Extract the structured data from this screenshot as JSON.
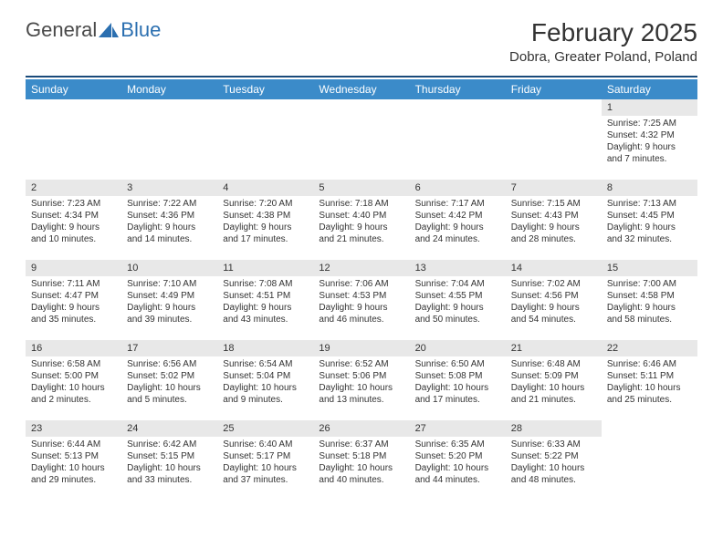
{
  "logo": {
    "text_general": "General",
    "text_blue": "Blue",
    "icon_color": "#2b6fb0"
  },
  "title": "February 2025",
  "location": "Dobra, Greater Poland, Poland",
  "colors": {
    "header_bg": "#3b8bc9",
    "header_text": "#ffffff",
    "rule": "#1a4a7a",
    "daynum_bg": "#e8e8e8",
    "body_text": "#333333"
  },
  "weekdays": [
    "Sunday",
    "Monday",
    "Tuesday",
    "Wednesday",
    "Thursday",
    "Friday",
    "Saturday"
  ],
  "weeks": [
    [
      null,
      null,
      null,
      null,
      null,
      null,
      {
        "n": "1",
        "sunrise": "Sunrise: 7:25 AM",
        "sunset": "Sunset: 4:32 PM",
        "daylight": "Daylight: 9 hours and 7 minutes."
      }
    ],
    [
      {
        "n": "2",
        "sunrise": "Sunrise: 7:23 AM",
        "sunset": "Sunset: 4:34 PM",
        "daylight": "Daylight: 9 hours and 10 minutes."
      },
      {
        "n": "3",
        "sunrise": "Sunrise: 7:22 AM",
        "sunset": "Sunset: 4:36 PM",
        "daylight": "Daylight: 9 hours and 14 minutes."
      },
      {
        "n": "4",
        "sunrise": "Sunrise: 7:20 AM",
        "sunset": "Sunset: 4:38 PM",
        "daylight": "Daylight: 9 hours and 17 minutes."
      },
      {
        "n": "5",
        "sunrise": "Sunrise: 7:18 AM",
        "sunset": "Sunset: 4:40 PM",
        "daylight": "Daylight: 9 hours and 21 minutes."
      },
      {
        "n": "6",
        "sunrise": "Sunrise: 7:17 AM",
        "sunset": "Sunset: 4:42 PM",
        "daylight": "Daylight: 9 hours and 24 minutes."
      },
      {
        "n": "7",
        "sunrise": "Sunrise: 7:15 AM",
        "sunset": "Sunset: 4:43 PM",
        "daylight": "Daylight: 9 hours and 28 minutes."
      },
      {
        "n": "8",
        "sunrise": "Sunrise: 7:13 AM",
        "sunset": "Sunset: 4:45 PM",
        "daylight": "Daylight: 9 hours and 32 minutes."
      }
    ],
    [
      {
        "n": "9",
        "sunrise": "Sunrise: 7:11 AM",
        "sunset": "Sunset: 4:47 PM",
        "daylight": "Daylight: 9 hours and 35 minutes."
      },
      {
        "n": "10",
        "sunrise": "Sunrise: 7:10 AM",
        "sunset": "Sunset: 4:49 PM",
        "daylight": "Daylight: 9 hours and 39 minutes."
      },
      {
        "n": "11",
        "sunrise": "Sunrise: 7:08 AM",
        "sunset": "Sunset: 4:51 PM",
        "daylight": "Daylight: 9 hours and 43 minutes."
      },
      {
        "n": "12",
        "sunrise": "Sunrise: 7:06 AM",
        "sunset": "Sunset: 4:53 PM",
        "daylight": "Daylight: 9 hours and 46 minutes."
      },
      {
        "n": "13",
        "sunrise": "Sunrise: 7:04 AM",
        "sunset": "Sunset: 4:55 PM",
        "daylight": "Daylight: 9 hours and 50 minutes."
      },
      {
        "n": "14",
        "sunrise": "Sunrise: 7:02 AM",
        "sunset": "Sunset: 4:56 PM",
        "daylight": "Daylight: 9 hours and 54 minutes."
      },
      {
        "n": "15",
        "sunrise": "Sunrise: 7:00 AM",
        "sunset": "Sunset: 4:58 PM",
        "daylight": "Daylight: 9 hours and 58 minutes."
      }
    ],
    [
      {
        "n": "16",
        "sunrise": "Sunrise: 6:58 AM",
        "sunset": "Sunset: 5:00 PM",
        "daylight": "Daylight: 10 hours and 2 minutes."
      },
      {
        "n": "17",
        "sunrise": "Sunrise: 6:56 AM",
        "sunset": "Sunset: 5:02 PM",
        "daylight": "Daylight: 10 hours and 5 minutes."
      },
      {
        "n": "18",
        "sunrise": "Sunrise: 6:54 AM",
        "sunset": "Sunset: 5:04 PM",
        "daylight": "Daylight: 10 hours and 9 minutes."
      },
      {
        "n": "19",
        "sunrise": "Sunrise: 6:52 AM",
        "sunset": "Sunset: 5:06 PM",
        "daylight": "Daylight: 10 hours and 13 minutes."
      },
      {
        "n": "20",
        "sunrise": "Sunrise: 6:50 AM",
        "sunset": "Sunset: 5:08 PM",
        "daylight": "Daylight: 10 hours and 17 minutes."
      },
      {
        "n": "21",
        "sunrise": "Sunrise: 6:48 AM",
        "sunset": "Sunset: 5:09 PM",
        "daylight": "Daylight: 10 hours and 21 minutes."
      },
      {
        "n": "22",
        "sunrise": "Sunrise: 6:46 AM",
        "sunset": "Sunset: 5:11 PM",
        "daylight": "Daylight: 10 hours and 25 minutes."
      }
    ],
    [
      {
        "n": "23",
        "sunrise": "Sunrise: 6:44 AM",
        "sunset": "Sunset: 5:13 PM",
        "daylight": "Daylight: 10 hours and 29 minutes."
      },
      {
        "n": "24",
        "sunrise": "Sunrise: 6:42 AM",
        "sunset": "Sunset: 5:15 PM",
        "daylight": "Daylight: 10 hours and 33 minutes."
      },
      {
        "n": "25",
        "sunrise": "Sunrise: 6:40 AM",
        "sunset": "Sunset: 5:17 PM",
        "daylight": "Daylight: 10 hours and 37 minutes."
      },
      {
        "n": "26",
        "sunrise": "Sunrise: 6:37 AM",
        "sunset": "Sunset: 5:18 PM",
        "daylight": "Daylight: 10 hours and 40 minutes."
      },
      {
        "n": "27",
        "sunrise": "Sunrise: 6:35 AM",
        "sunset": "Sunset: 5:20 PM",
        "daylight": "Daylight: 10 hours and 44 minutes."
      },
      {
        "n": "28",
        "sunrise": "Sunrise: 6:33 AM",
        "sunset": "Sunset: 5:22 PM",
        "daylight": "Daylight: 10 hours and 48 minutes."
      },
      null
    ]
  ]
}
